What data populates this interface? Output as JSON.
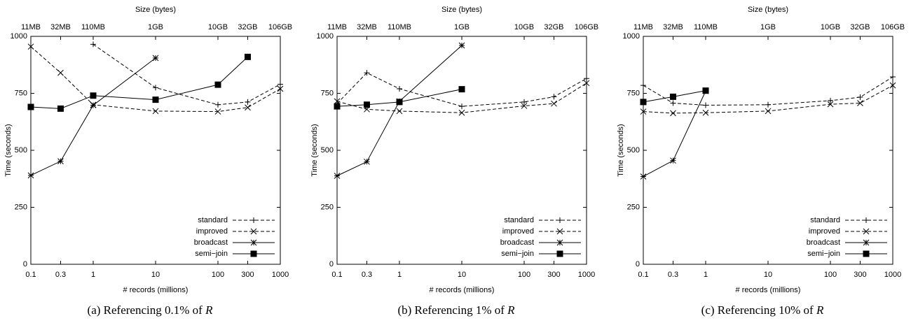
{
  "chart_data": [
    {
      "type": "line",
      "caption": "(a) Referencing 0.1% of",
      "caption_var": "R",
      "xlabel": "# records (millions)",
      "ylabel": "Time (seconds)",
      "x2label": "Size (bytes)",
      "log_x": true,
      "legend": "lower right",
      "x": [
        0.1,
        0.3,
        1,
        10,
        100,
        300,
        1000
      ],
      "xlim": [
        0.1,
        1000
      ],
      "xticks": [
        0.1,
        0.3,
        1,
        10,
        100,
        300,
        1000
      ],
      "x2ticks": [
        {
          "value": 0.1,
          "label": "11MB"
        },
        {
          "value": 0.3,
          "label": "32MB"
        },
        {
          "value": 1,
          "label": "110MB"
        },
        {
          "value": 10,
          "label": "1GB"
        },
        {
          "value": 100,
          "label": "10GB"
        },
        {
          "value": 300,
          "label": "32GB"
        },
        {
          "value": 1000,
          "label": "106GB"
        }
      ],
      "ylim": [
        0,
        1000
      ],
      "yticks": [
        0,
        250,
        500,
        750,
        1000
      ],
      "series": [
        {
          "name": "standard",
          "color": "#000000",
          "dash": "dashed",
          "marker": "plus",
          "values": [
            null,
            null,
            965,
            775,
            700,
            712,
            790
          ]
        },
        {
          "name": "improved",
          "color": "#000000",
          "dash": "dashed",
          "marker": "cross",
          "values": [
            955,
            840,
            700,
            672,
            670,
            688,
            770
          ]
        },
        {
          "name": "broadcast",
          "color": "#000000",
          "dash": "solid",
          "marker": "star",
          "values": [
            390,
            452,
            698,
            905,
            null,
            null,
            null
          ]
        },
        {
          "name": "semi−join",
          "color": "#000000",
          "dash": "solid",
          "marker": "square",
          "values": [
            690,
            683,
            740,
            722,
            788,
            910,
            null
          ]
        }
      ]
    },
    {
      "type": "line",
      "caption": "(b) Referencing 1% of",
      "caption_var": "R",
      "xlabel": "# records (millions)",
      "ylabel": "Time (seconds)",
      "x2label": "Size (bytes)",
      "log_x": true,
      "legend": "lower right",
      "x": [
        0.1,
        0.3,
        1,
        10,
        100,
        300,
        1000
      ],
      "xlim": [
        0.1,
        1000
      ],
      "xticks": [
        0.1,
        0.3,
        1,
        10,
        100,
        300,
        1000
      ],
      "x2ticks": [
        {
          "value": 0.1,
          "label": "11MB"
        },
        {
          "value": 0.3,
          "label": "32MB"
        },
        {
          "value": 1,
          "label": "110MB"
        },
        {
          "value": 10,
          "label": "1GB"
        },
        {
          "value": 100,
          "label": "10GB"
        },
        {
          "value": 300,
          "label": "32GB"
        },
        {
          "value": 1000,
          "label": "106GB"
        }
      ],
      "ylim": [
        0,
        1000
      ],
      "yticks": [
        0,
        250,
        500,
        750,
        1000
      ],
      "series": [
        {
          "name": "standard",
          "color": "#000000",
          "dash": "dashed",
          "marker": "plus",
          "values": [
            705,
            840,
            770,
            693,
            712,
            735,
            815
          ]
        },
        {
          "name": "improved",
          "color": "#000000",
          "dash": "dashed",
          "marker": "cross",
          "values": [
            715,
            680,
            672,
            665,
            695,
            705,
            795
          ]
        },
        {
          "name": "broadcast",
          "color": "#000000",
          "dash": "solid",
          "marker": "star",
          "values": [
            388,
            450,
            715,
            960,
            null,
            null,
            null
          ]
        },
        {
          "name": "semi−join",
          "color": "#000000",
          "dash": "solid",
          "marker": "square",
          "values": [
            693,
            700,
            712,
            768,
            null,
            null,
            null
          ]
        }
      ]
    },
    {
      "type": "line",
      "caption": "(c) Referencing 10% of",
      "caption_var": "R",
      "xlabel": "# records (millions)",
      "ylabel": "Time (seconds)",
      "x2label": "Size (bytes)",
      "log_x": true,
      "legend": "lower right",
      "x": [
        0.1,
        0.3,
        1,
        10,
        100,
        300,
        1000
      ],
      "xlim": [
        0.1,
        1000
      ],
      "xticks": [
        0.1,
        0.3,
        1,
        10,
        100,
        300,
        1000
      ],
      "x2ticks": [
        {
          "value": 0.1,
          "label": "11MB"
        },
        {
          "value": 0.3,
          "label": "32MB"
        },
        {
          "value": 1,
          "label": "110MB"
        },
        {
          "value": 10,
          "label": "1GB"
        },
        {
          "value": 100,
          "label": "10GB"
        },
        {
          "value": 300,
          "label": "32GB"
        },
        {
          "value": 1000,
          "label": "106GB"
        }
      ],
      "ylim": [
        0,
        1000
      ],
      "yticks": [
        0,
        250,
        500,
        750,
        1000
      ],
      "series": [
        {
          "name": "standard",
          "color": "#000000",
          "dash": "dashed",
          "marker": "plus",
          "values": [
            785,
            707,
            698,
            700,
            718,
            733,
            822
          ]
        },
        {
          "name": "improved",
          "color": "#000000",
          "dash": "dashed",
          "marker": "cross",
          "values": [
            670,
            663,
            665,
            672,
            702,
            707,
            785
          ]
        },
        {
          "name": "broadcast",
          "color": "#000000",
          "dash": "solid",
          "marker": "star",
          "values": [
            385,
            455,
            760,
            null,
            null,
            null,
            null
          ]
        },
        {
          "name": "semi−join",
          "color": "#000000",
          "dash": "solid",
          "marker": "square",
          "values": [
            712,
            735,
            762,
            null,
            null,
            null,
            null
          ]
        }
      ]
    }
  ]
}
